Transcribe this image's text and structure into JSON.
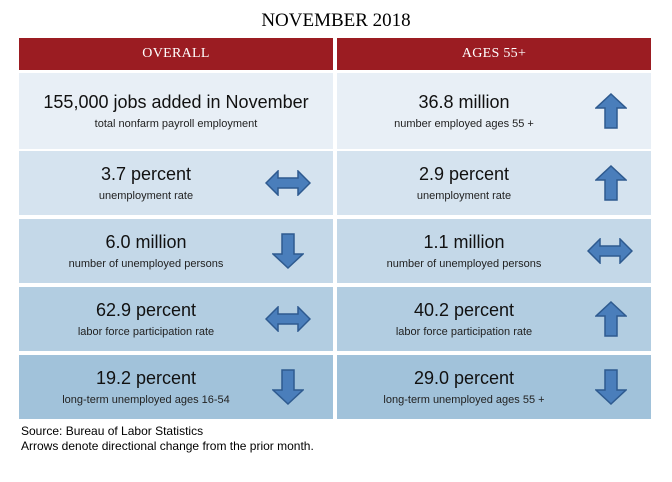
{
  "title": "NOVEMBER 2018",
  "headers": {
    "overall": "OVERALL",
    "ages55": "AGES 55+"
  },
  "colors": {
    "header_bg": "#9b1c22",
    "row_bg": [
      "#e8eff6",
      "#d5e3ef",
      "#c4d8e8",
      "#b2cde1",
      "#a1c2da"
    ],
    "arrow_fill": "#4a7ebb",
    "arrow_stroke": "#2e5a8f"
  },
  "rows": [
    {
      "overall": {
        "value": "155,000 jobs added in November",
        "label": "total nonfarm payroll employment",
        "arrow": "none"
      },
      "ages55": {
        "value": "36.8 million",
        "label": "number employed ages 55 +",
        "arrow": "up"
      }
    },
    {
      "overall": {
        "value": "3.7 percent",
        "label": "unemployment rate",
        "arrow": "both"
      },
      "ages55": {
        "value": "2.9 percent",
        "label": "unemployment rate",
        "arrow": "up"
      }
    },
    {
      "overall": {
        "value": "6.0 million",
        "label": "number of unemployed persons",
        "arrow": "down"
      },
      "ages55": {
        "value": "1.1 million",
        "label": "number of unemployed persons",
        "arrow": "both"
      }
    },
    {
      "overall": {
        "value": "62.9 percent",
        "label": "labor force participation rate",
        "arrow": "both"
      },
      "ages55": {
        "value": "40.2 percent",
        "label": "labor force participation rate",
        "arrow": "up"
      }
    },
    {
      "overall": {
        "value": "19.2 percent",
        "label": "long-term unemployed ages 16-54",
        "arrow": "down"
      },
      "ages55": {
        "value": "29.0 percent",
        "label": "long-term unemployed ages 55 +",
        "arrow": "down"
      }
    }
  ],
  "footer": {
    "source": "Source: Bureau of Labor Statistics",
    "note": "Arrows denote directional change from the prior month."
  }
}
